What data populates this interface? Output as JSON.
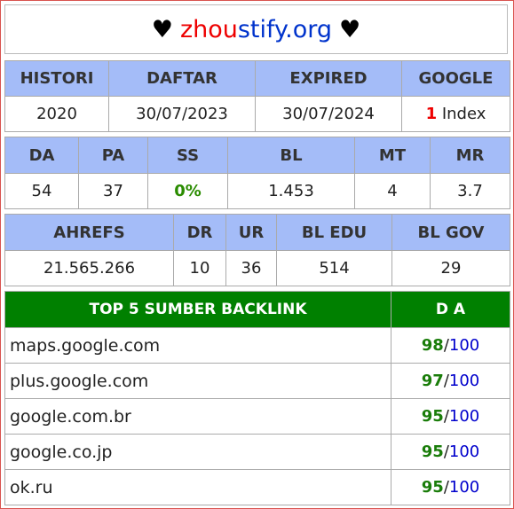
{
  "header": {
    "heart_left": "♥",
    "part_red": "zhou",
    "part_blue": "stify.org",
    "heart_right": "♥"
  },
  "table1": {
    "headers": [
      "HISTORI",
      "DAFTAR",
      "EXPIRED",
      "GOOGLE"
    ],
    "values": {
      "histori": "2020",
      "daftar": "30/07/2023",
      "expired": "30/07/2024",
      "google_count": "1",
      "google_label": "Index"
    }
  },
  "table2": {
    "headers": [
      "DA",
      "PA",
      "SS",
      "BL",
      "MT",
      "MR"
    ],
    "values": [
      "54",
      "37",
      "0%",
      "1.453",
      "4",
      "3.7"
    ]
  },
  "table3": {
    "headers": [
      "AHREFS",
      "DR",
      "UR",
      "BL EDU",
      "BL GOV"
    ],
    "values": [
      "21.565.266",
      "10",
      "36",
      "514",
      "29"
    ]
  },
  "backlinks": {
    "header_left": "TOP 5 SUMBER BACKLINK",
    "header_right": "D A",
    "max": "100",
    "sep": "/",
    "rows": [
      {
        "domain": "maps.google.com",
        "da": "98"
      },
      {
        "domain": "plus.google.com",
        "da": "97"
      },
      {
        "domain": "google.com.br",
        "da": "95"
      },
      {
        "domain": "google.co.jp",
        "da": "95"
      },
      {
        "domain": "ok.ru",
        "da": "95"
      }
    ]
  },
  "colors": {
    "accent_green": "#008000",
    "header_blue": "#a4bcf8",
    "red": "#ee0000",
    "blue": "#0000cc"
  }
}
